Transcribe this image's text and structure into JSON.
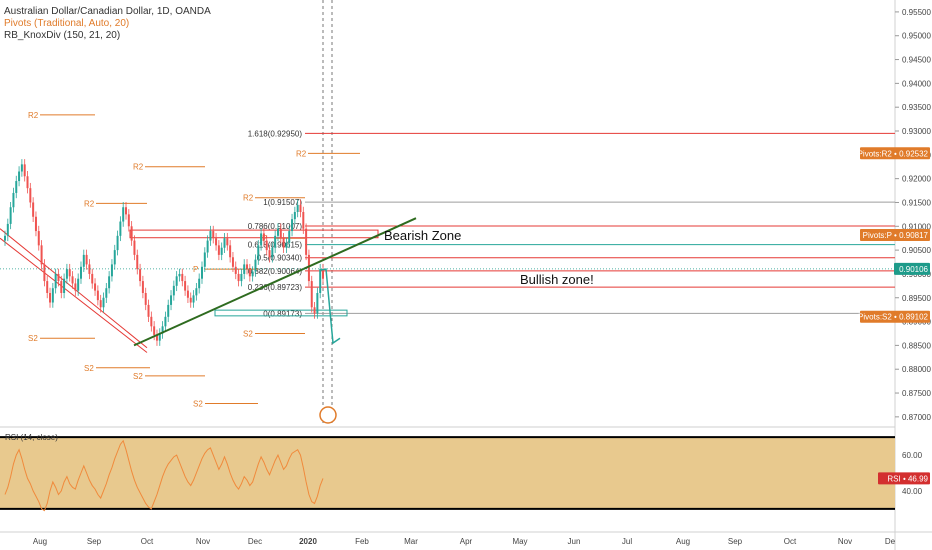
{
  "header": {
    "symbol_line": "Australian Dollar/Canadian Dollar, 1D, OANDA",
    "pivots_line": "Pivots (Traditional, Auto, 20)",
    "indicator_line": "RB_KnoxDiv (150, 21, 20)"
  },
  "annotations": {
    "bearish": "Bearish Zone",
    "bullish": "Bullish zone!"
  },
  "colors": {
    "pivot": "#e07b2a",
    "fib_red": "#e53935",
    "fib_gray": "#9e9e9e",
    "fib_teal": "#26a69a",
    "candle_up": "#26a69a",
    "candle_down": "#ef5350",
    "trendline": "#2e6b1f",
    "rsi_band": "#e8c98e",
    "rsi_line": "#f08a3c",
    "price_badge": "#1e9b8a",
    "rsi_badge": "#d32f2f"
  },
  "chart_data": [
    {
      "type": "candlestick",
      "title": "Australian Dollar/Canadian Dollar, 1D, OANDA",
      "x_ticks": [
        "Aug",
        "Sep",
        "Oct",
        "Nov",
        "Dec",
        "2020",
        "Feb",
        "Mar",
        "Apr",
        "May",
        "Jun",
        "Jul",
        "Aug",
        "Sep",
        "Oct",
        "Nov",
        "De"
      ],
      "y_ticks": [
        "0.95500",
        "0.95000",
        "0.94500",
        "0.94000",
        "0.93500",
        "0.93000",
        "0.92500",
        "0.92000",
        "0.91500",
        "0.91000",
        "0.90500",
        "0.90000",
        "0.89500",
        "0.89000",
        "0.88500",
        "0.88000",
        "0.87500",
        "0.87000"
      ],
      "ylim": [
        0.8685,
        0.9575
      ],
      "grid": false,
      "pivot_labels": [
        {
          "label": "R2",
          "value": 0.9334
        },
        {
          "label": "R2",
          "value": 0.9225
        },
        {
          "label": "R2",
          "value": 0.9148
        },
        {
          "label": "R2",
          "value": 0.916
        },
        {
          "label": "R2",
          "value": 0.9253
        },
        {
          "label": "S2",
          "value": 0.8865
        },
        {
          "label": "S2",
          "value": 0.8803
        },
        {
          "label": "S2",
          "value": 0.8786
        },
        {
          "label": "S2",
          "value": 0.8728
        },
        {
          "label": "S2",
          "value": 0.8875
        },
        {
          "label": "P",
          "value": 0.901
        },
        {
          "label": "P",
          "value": 0.9075
        }
      ],
      "fib_levels": [
        {
          "label": "1.618(0.92950)",
          "value": 0.9295
        },
        {
          "label": "1(0.91507)",
          "value": 0.91507
        },
        {
          "label": "0.786(0.91007)",
          "value": 0.91007
        },
        {
          "label": "0.618(0.90615)",
          "value": 0.90615
        },
        {
          "label": "0.5(0.90340)",
          "value": 0.9034
        },
        {
          "label": "0.382(0.90064)",
          "value": 0.90064
        },
        {
          "label": "0.236(0.89723)",
          "value": 0.89723
        },
        {
          "label": "0(0.89173)",
          "value": 0.89173
        }
      ],
      "price_badges": [
        {
          "label": "Pivots:R2",
          "value": "0.92532"
        },
        {
          "label": "Pivots:P",
          "value": "0.90817"
        },
        {
          "label": "",
          "value": "0.90106"
        },
        {
          "label": "Pivots:S2",
          "value": "0.89102"
        }
      ],
      "closes": [
        0.908,
        0.9105,
        0.914,
        0.917,
        0.9195,
        0.9215,
        0.923,
        0.9205,
        0.918,
        0.915,
        0.912,
        0.909,
        0.906,
        0.902,
        0.8985,
        0.896,
        0.894,
        0.897,
        0.9,
        0.8985,
        0.896,
        0.899,
        0.901,
        0.8995,
        0.898,
        0.8965,
        0.899,
        0.9015,
        0.904,
        0.902,
        0.9,
        0.898,
        0.8965,
        0.8945,
        0.893,
        0.895,
        0.897,
        0.8995,
        0.902,
        0.905,
        0.908,
        0.911,
        0.914,
        0.9125,
        0.91,
        0.907,
        0.904,
        0.901,
        0.8985,
        0.896,
        0.8935,
        0.891,
        0.889,
        0.8872,
        0.886,
        0.8875,
        0.889,
        0.891,
        0.8935,
        0.8955,
        0.8975,
        0.8995,
        0.9,
        0.8985,
        0.8965,
        0.895,
        0.894,
        0.8955,
        0.897,
        0.899,
        0.9015,
        0.9045,
        0.907,
        0.909,
        0.9075,
        0.906,
        0.904,
        0.9055,
        0.9075,
        0.906,
        0.9035,
        0.9015,
        0.9,
        0.8985,
        0.9,
        0.902,
        0.901,
        0.8995,
        0.9005,
        0.903,
        0.906,
        0.9085,
        0.907,
        0.905,
        0.9035,
        0.9055,
        0.908,
        0.9095,
        0.9075,
        0.9055,
        0.9065,
        0.909,
        0.9115,
        0.913,
        0.9145,
        0.913,
        0.9095,
        0.904,
        0.8985,
        0.893,
        0.8917,
        0.896,
        0.901,
        0.899
      ],
      "rsi": {
        "label": "RSI (14, close)",
        "y_ticks": [
          "60.00",
          "40.00"
        ],
        "ylim": [
          26,
          74
        ],
        "band": [
          30,
          70
        ],
        "last": "46.99",
        "values": [
          38,
          42,
          48,
          55,
          60,
          63,
          58,
          52,
          47,
          44,
          40,
          37,
          34,
          30,
          29,
          33,
          40,
          45,
          42,
          38,
          40,
          45,
          48,
          44,
          42,
          41,
          46,
          50,
          54,
          50,
          46,
          43,
          41,
          38,
          36,
          40,
          44,
          49,
          53,
          58,
          62,
          66,
          68,
          63,
          57,
          51,
          46,
          42,
          39,
          36,
          33,
          31,
          30,
          34,
          38,
          43,
          48,
          52,
          55,
          57,
          59,
          60,
          56,
          52,
          48,
          45,
          43,
          46,
          50,
          54,
          58,
          61,
          63,
          64,
          60,
          56,
          52,
          55,
          59,
          55,
          50,
          46,
          43,
          41,
          44,
          48,
          46,
          43,
          45,
          50,
          55,
          59,
          56,
          52,
          49,
          53,
          57,
          60,
          56,
          52,
          54,
          58,
          61,
          62,
          63,
          60,
          53,
          45,
          38,
          34,
          33,
          37,
          43,
          46.99
        ]
      }
    }
  ]
}
